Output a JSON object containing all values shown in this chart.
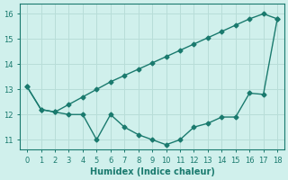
{
  "x": [
    0,
    1,
    2,
    3,
    4,
    5,
    6,
    7,
    8,
    9,
    10,
    11,
    12,
    13,
    14,
    15,
    16,
    17,
    18
  ],
  "line1": [
    13.1,
    12.2,
    12.1,
    12.0,
    12.0,
    11.0,
    12.0,
    11.5,
    11.2,
    11.0,
    10.8,
    11.0,
    11.5,
    11.65,
    11.9,
    11.9,
    12.85,
    12.8,
    15.8
  ],
  "line2": [
    13.1,
    12.2,
    12.1,
    12.4,
    12.7,
    13.0,
    13.3,
    13.55,
    13.8,
    14.05,
    14.3,
    14.55,
    14.8,
    15.05,
    15.3,
    15.55,
    15.8,
    16.0,
    15.8
  ],
  "line_color": "#1a7a6e",
  "bg_color": "#d0f0ec",
  "grid_color": "#b8ddd8",
  "xlabel": "Humidex (Indice chaleur)",
  "ylabel_ticks": [
    11,
    12,
    13,
    14,
    15,
    16
  ],
  "xlim": [
    -0.5,
    18.5
  ],
  "ylim": [
    10.6,
    16.4
  ],
  "marker": "D",
  "marker_size": 2.5,
  "line_width": 1.0
}
